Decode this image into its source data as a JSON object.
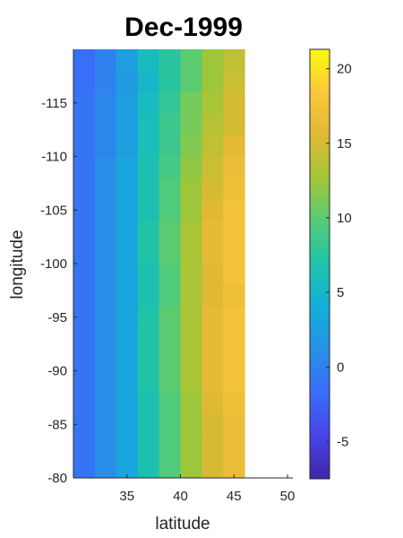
{
  "chart_data": {
    "type": "heatmap",
    "title": "Dec-1999",
    "xlabel": "latitude",
    "ylabel": "longitude",
    "colormap": "parula",
    "x": [
      31,
      33,
      35,
      37,
      39,
      41,
      43,
      45,
      47,
      49
    ],
    "y": [
      -119,
      -117,
      -115,
      -113,
      -111,
      -109,
      -107,
      -105,
      -103,
      -101,
      -99,
      -97,
      -95,
      -93,
      -91,
      -89,
      -87,
      -85,
      -83,
      -81
    ],
    "xlim": [
      30,
      50.5
    ],
    "ylim": [
      -120,
      -80
    ],
    "xticks": [
      35,
      40,
      45,
      50
    ],
    "xticklabels": [
      "35",
      "40",
      "45",
      "50"
    ],
    "yticks": [
      -115,
      -110,
      -105,
      -100,
      -95,
      -90,
      -85,
      -80
    ],
    "yticklabels": [
      "-115",
      "-110",
      "-105",
      "-100",
      "-95",
      "-90",
      "-85",
      "-80"
    ],
    "clim": [
      -7.5,
      21.3
    ],
    "cticks": [
      -5,
      0,
      5,
      10,
      15,
      20
    ],
    "cticklabels": [
      "-5",
      "0",
      "5",
      "10",
      "15",
      "20"
    ],
    "values": [
      [
        -1.5,
        0.0,
        2.5,
        5.5,
        7.5,
        10.0,
        12.5,
        14.0,
        null,
        null
      ],
      [
        -1.5,
        0.0,
        2.0,
        5.0,
        7.5,
        10.0,
        12.5,
        14.5,
        null,
        null
      ],
      [
        -1.0,
        0.5,
        2.5,
        5.5,
        8.0,
        11.0,
        13.0,
        15.0,
        null,
        null
      ],
      [
        -1.0,
        0.5,
        2.5,
        6.0,
        8.5,
        11.0,
        13.5,
        15.0,
        null,
        null
      ],
      [
        -1.0,
        0.5,
        2.5,
        6.0,
        8.5,
        11.5,
        14.0,
        16.0,
        null,
        null
      ],
      [
        -1.0,
        1.0,
        3.0,
        6.5,
        9.0,
        12.0,
        14.5,
        16.5,
        null,
        null
      ],
      [
        -1.0,
        1.0,
        3.0,
        6.5,
        9.5,
        12.5,
        15.0,
        17.0,
        null,
        null
      ],
      [
        -1.0,
        1.0,
        3.0,
        6.5,
        9.5,
        12.5,
        15.5,
        17.5,
        null,
        null
      ],
      [
        -1.0,
        1.0,
        3.0,
        7.0,
        10.0,
        13.0,
        16.0,
        17.5,
        null,
        null
      ],
      [
        -1.0,
        1.0,
        3.0,
        7.0,
        10.0,
        13.0,
        16.0,
        17.5,
        null,
        null
      ],
      [
        -1.0,
        1.0,
        3.0,
        6.5,
        9.5,
        13.0,
        15.5,
        17.5,
        null,
        null
      ],
      [
        -1.0,
        1.0,
        3.0,
        6.5,
        9.5,
        13.0,
        15.5,
        17.0,
        null,
        null
      ],
      [
        -1.0,
        1.0,
        3.0,
        7.0,
        10.0,
        13.0,
        16.0,
        17.5,
        null,
        null
      ],
      [
        -1.0,
        1.0,
        3.0,
        7.0,
        10.0,
        13.0,
        16.0,
        17.5,
        null,
        null
      ],
      [
        -1.0,
        1.0,
        3.0,
        7.0,
        10.0,
        13.0,
        16.0,
        17.5,
        null,
        null
      ],
      [
        -1.0,
        1.0,
        3.0,
        7.0,
        10.0,
        13.0,
        16.0,
        17.5,
        null,
        null
      ],
      [
        -1.0,
        1.0,
        3.0,
        6.5,
        9.5,
        12.5,
        15.5,
        17.0,
        null,
        null
      ],
      [
        -1.0,
        1.0,
        3.0,
        6.5,
        9.5,
        12.5,
        15.0,
        16.5,
        null,
        null
      ],
      [
        -1.0,
        1.0,
        3.0,
        6.5,
        9.5,
        12.5,
        15.0,
        16.5,
        null,
        null
      ],
      [
        -1.0,
        1.0,
        3.0,
        6.5,
        9.5,
        12.5,
        15.0,
        16.5,
        null,
        null
      ]
    ]
  }
}
